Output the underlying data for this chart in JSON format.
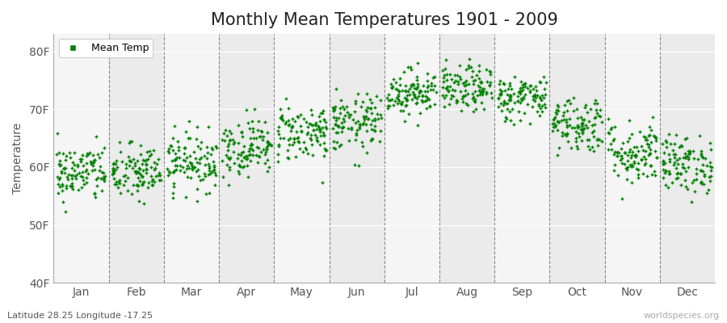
{
  "title": "Monthly Mean Temperatures 1901 - 2009",
  "ylabel": "Temperature",
  "xlabel": "",
  "subtitle_left": "Latitude 28.25 Longitude -17.25",
  "subtitle_right": "worldspecies.org",
  "legend_label": "Mean Temp",
  "dot_color": "#008000",
  "background_color": "#ffffff",
  "plot_bg_color": "#ffffff",
  "band_color_odd": "#ebebeb",
  "band_color_even": "#f5f5f5",
  "yticks": [
    40,
    50,
    60,
    70,
    80
  ],
  "ytick_labels": [
    "40F",
    "50F",
    "60F",
    "70F",
    "80F"
  ],
  "months": [
    "Jan",
    "Feb",
    "Mar",
    "Apr",
    "May",
    "Jun",
    "Jul",
    "Aug",
    "Sep",
    "Oct",
    "Nov",
    "Dec"
  ],
  "month_centers": [
    0.5,
    1.5,
    2.5,
    3.5,
    4.5,
    5.5,
    6.5,
    7.5,
    8.5,
    9.5,
    10.5,
    11.5
  ],
  "month_dividers": [
    1.0,
    2.0,
    3.0,
    4.0,
    5.0,
    6.0,
    7.0,
    8.0,
    9.0,
    10.0,
    11.0
  ],
  "ylim": [
    40,
    83
  ],
  "xlim": [
    0,
    12
  ],
  "n_years": 109,
  "mean_temps_F": [
    59.0,
    59.0,
    61.0,
    63.5,
    66.0,
    67.5,
    73.0,
    73.5,
    72.0,
    67.5,
    62.5,
    60.5
  ],
  "std_temps_F": [
    2.5,
    2.5,
    2.5,
    2.5,
    2.5,
    2.5,
    2.0,
    2.0,
    2.0,
    2.5,
    2.8,
    2.5
  ],
  "marker_size": 6,
  "title_fontsize": 15,
  "axis_fontsize": 10,
  "tick_fontsize": 10,
  "legend_fontsize": 9
}
